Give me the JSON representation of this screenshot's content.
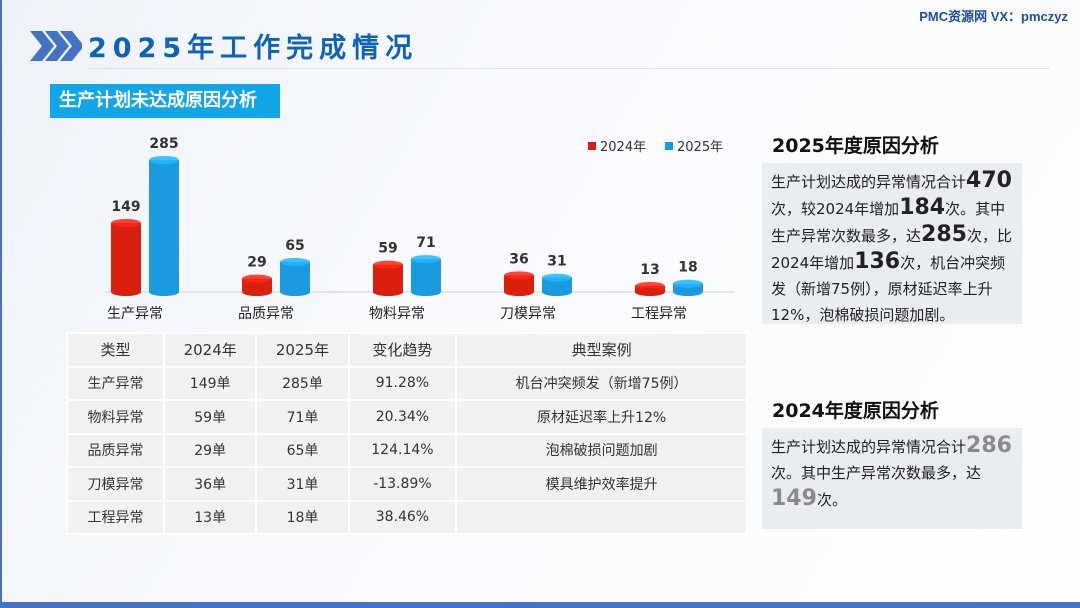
{
  "watermark": "PMC资源网 VX：pmczyz",
  "title": "2025年工作完成情况",
  "subtitle": "生产计划未达成原因分析",
  "colors": {
    "y2024": "#d9200f",
    "y2025": "#1a9ae0",
    "accent": "#0c63b8"
  },
  "chart_data": {
    "type": "bar",
    "categories": [
      "生产异常",
      "品质异常",
      "物料异常",
      "刀模异常",
      "工程异常"
    ],
    "series": [
      {
        "name": "2024年",
        "values": [
          149,
          29,
          59,
          36,
          13
        ]
      },
      {
        "name": "2025年",
        "values": [
          285,
          65,
          71,
          31,
          18
        ]
      }
    ],
    "legend": "top-right",
    "grid": false,
    "bar_style": "cylinder"
  },
  "table": {
    "headers": [
      "类型",
      "2024年",
      "2025年",
      "变化趋势",
      "典型案例"
    ],
    "rows": [
      [
        "生产异常",
        "149单",
        "285单",
        "91.28%",
        "机台冲突频发（新增75例）"
      ],
      [
        "物料异常",
        "59单",
        "71单",
        "20.34%",
        "原材延迟率上升12%"
      ],
      [
        "品质异常",
        "29单",
        "65单",
        "124.14%",
        "泡棉破损问题加剧"
      ],
      [
        "刀模异常",
        "36单",
        "31单",
        "-13.89%",
        "模具维护效率提升"
      ],
      [
        "工程异常",
        "13单",
        "18单",
        "38.46%",
        ""
      ]
    ]
  },
  "analysis2025": {
    "heading": "2025年度原因分析",
    "segments": [
      {
        "t": "生产计划达成的异常情况合计"
      },
      {
        "t": "470",
        "b": true
      },
      {
        "t": "次，较2024年增加"
      },
      {
        "t": "184",
        "b": true
      },
      {
        "t": "次。其中生产异常次数最多，达"
      },
      {
        "t": "285",
        "b": true
      },
      {
        "t": "次，比2024年增加"
      },
      {
        "t": "136",
        "b": true
      },
      {
        "t": "次，机台冲突频发（新增75例），原材延迟率上升12%，泡棉破损问题加剧。"
      }
    ]
  },
  "analysis2024": {
    "heading": "2024年度原因分析",
    "segments": [
      {
        "t": "生产计划达成的异常情况合计"
      },
      {
        "t": "286",
        "b": true
      },
      {
        "t": "次。其中生产异常次数最多，达"
      },
      {
        "t": "149",
        "b": true
      },
      {
        "t": "次。"
      }
    ]
  }
}
